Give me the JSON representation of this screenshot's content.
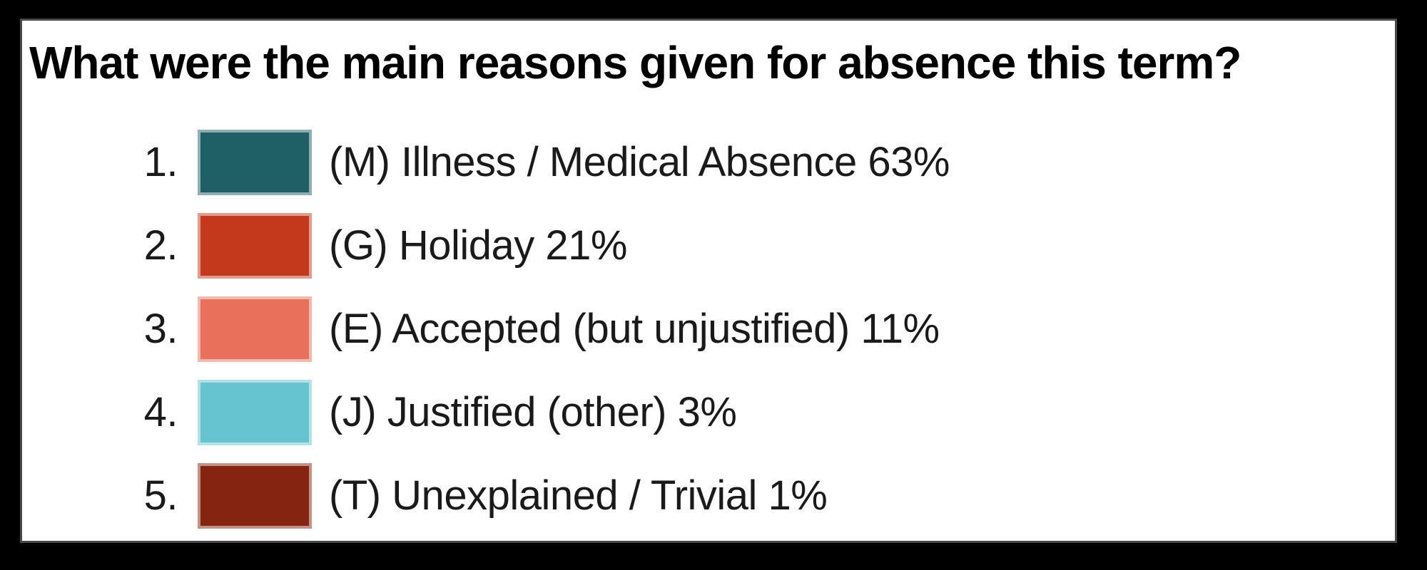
{
  "title": "What were the main reasons given for absence this term?",
  "list": {
    "items": [
      {
        "rank": "1.",
        "label": "(M) Illness / Medical Absence 63%",
        "color": "#1f6066"
      },
      {
        "rank": "2.",
        "label": "(G) Holiday 21%",
        "color": "#c4381b"
      },
      {
        "rank": "3.",
        "label": "(E) Accepted (but unjustified) 11%",
        "color": "#e9715c"
      },
      {
        "rank": "4.",
        "label": "(J) Justified (other) 3%",
        "color": "#65c4cf"
      },
      {
        "rank": "5.",
        "label": "(T) Unexplained / Trivial 1%",
        "color": "#852411"
      }
    ]
  },
  "chart_data": {
    "type": "table",
    "title": "What were the main reasons given for absence this term?",
    "categories": [
      "(M) Illness / Medical Absence",
      "(G) Holiday",
      "(E) Accepted (but unjustified)",
      "(J) Justified (other)",
      "(T) Unexplained / Trivial"
    ],
    "values": [
      63,
      21,
      11,
      3,
      1
    ],
    "unit": "%",
    "legend_colors": [
      "#1f6066",
      "#c4381b",
      "#e9715c",
      "#65c4cf",
      "#852411"
    ],
    "legend_position": "vertical-list",
    "grid": false
  },
  "colors": {
    "background": "#000000",
    "panel": "#ffffff",
    "panel_border": "#4a4a4a",
    "text": "#1a1a1a"
  }
}
